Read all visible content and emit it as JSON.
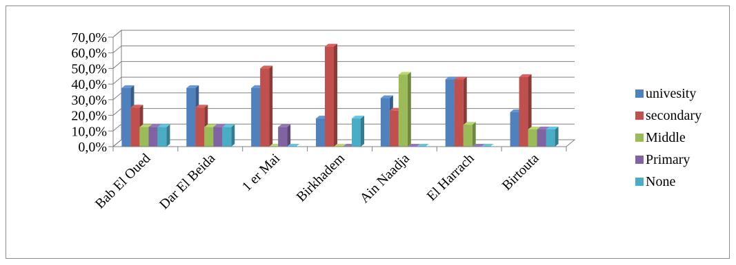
{
  "chart_data": {
    "type": "bar",
    "categories": [
      "Bab El Oued",
      "Dar El Beida",
      "1 er Mai",
      "Birkhadem",
      "Ain Naadja",
      "El Harrach",
      "Birtouta"
    ],
    "series": [
      {
        "name": "univesity",
        "color": "#4f81bd",
        "values": [
          37.5,
          37.5,
          37.5,
          18.0,
          31.0,
          43.0,
          22.0
        ]
      },
      {
        "name": "secondary",
        "color": "#c0504d",
        "values": [
          25.0,
          25.0,
          50.0,
          64.0,
          23.0,
          43.0,
          44.5
        ]
      },
      {
        "name": "Middle",
        "color": "#9bbb59",
        "values": [
          12.5,
          12.5,
          0.0,
          0.0,
          46.0,
          14.0,
          11.0
        ]
      },
      {
        "name": "Primary",
        "color": "#8064a2",
        "values": [
          12.5,
          12.5,
          12.5,
          0.0,
          0.0,
          0.0,
          11.0
        ]
      },
      {
        "name": "None",
        "color": "#4bacc6",
        "values": [
          12.5,
          12.5,
          0.0,
          18.0,
          0.0,
          0.0,
          11.0
        ]
      }
    ],
    "yticks": [
      "0,0%",
      "10,0%",
      "20,0%",
      "30,0%",
      "40,0%",
      "50,0%",
      "60,0%",
      "70,0%"
    ],
    "ylim": [
      0,
      70
    ],
    "title": "",
    "xlabel": "",
    "ylabel": "",
    "grid": true,
    "legend": "right",
    "style": "3d-clustered-column"
  }
}
